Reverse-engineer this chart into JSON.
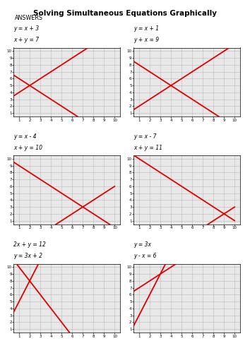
{
  "title": "Solving Simultaneous Equations Graphically",
  "subtitle": "ANSWERS",
  "line_color": "#dd0000",
  "grid_color": "#bbbbbb",
  "bg_color": "#ffffff",
  "plot_bg": "#e8e8e8",
  "plots": [
    {
      "lbl1": "y = x + 3",
      "lbl2": "x + y = 7",
      "line1_slope": 1,
      "line1_intercept": 3,
      "line2_slope": -1,
      "line2_intercept": 7
    },
    {
      "lbl1": "y = x + 1",
      "lbl2": "y + x = 9",
      "line1_slope": 1,
      "line1_intercept": 1,
      "line2_slope": -1,
      "line2_intercept": 9
    },
    {
      "lbl1": "y = x - 4",
      "lbl2": "x + y = 10",
      "line1_slope": 1,
      "line1_intercept": -4,
      "line2_slope": -1,
      "line2_intercept": 10
    },
    {
      "lbl1": "y = x - 7",
      "lbl2": "x + y = 11",
      "line1_slope": 1,
      "line1_intercept": -7,
      "line2_slope": -1,
      "line2_intercept": 11
    },
    {
      "lbl1": "2x + y = 12",
      "lbl2": "y = 3x + 2",
      "line1_slope": -2,
      "line1_intercept": 12,
      "line2_slope": 3,
      "line2_intercept": 2
    },
    {
      "lbl1": "y = 3x",
      "lbl2": "y - x = 6",
      "line1_slope": 3,
      "line1_intercept": 0,
      "line2_slope": 1,
      "line2_intercept": 6
    }
  ]
}
